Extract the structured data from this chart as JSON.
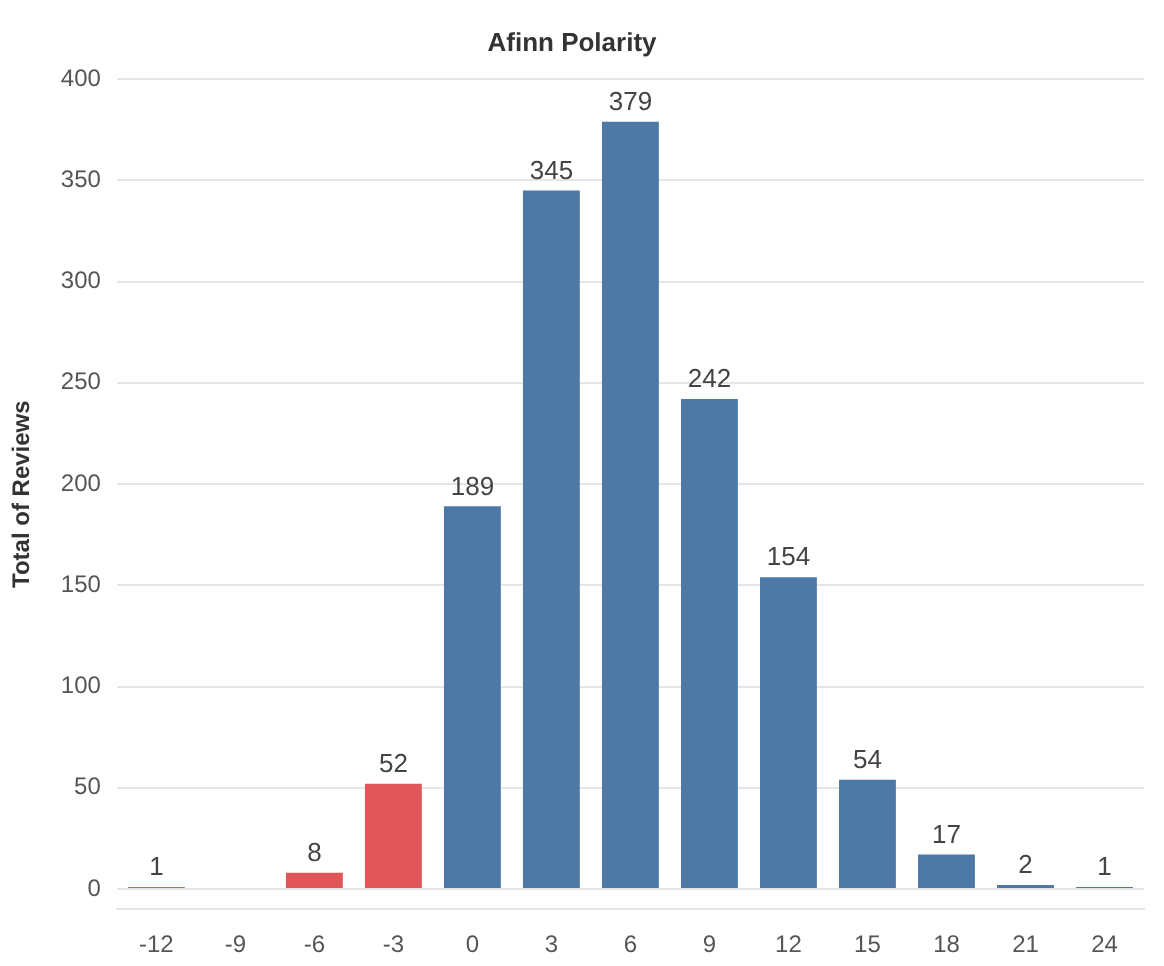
{
  "chart_data": {
    "type": "bar",
    "title": "Afinn Polarity",
    "ylabel": "Total of Reviews",
    "categories": [
      "-12",
      "-9",
      "-6",
      "-3",
      "0",
      "3",
      "6",
      "9",
      "12",
      "15",
      "18",
      "21",
      "24"
    ],
    "values": [
      1,
      null,
      8,
      52,
      189,
      345,
      379,
      242,
      154,
      54,
      17,
      2,
      1
    ],
    "colors": [
      "#e15759",
      "#e15759",
      "#e15759",
      "#e15759",
      "#4e79a7",
      "#4e79a7",
      "#4e79a7",
      "#4e79a7",
      "#4e79a7",
      "#4e79a7",
      "#4e79a7",
      "#4e79a7",
      "#4e79a7"
    ],
    "ylim": [
      -10,
      400
    ],
    "yticks": [
      0,
      50,
      100,
      150,
      200,
      250,
      300,
      350,
      400
    ],
    "grid": "y",
    "data_labels": true,
    "legend": false
  }
}
